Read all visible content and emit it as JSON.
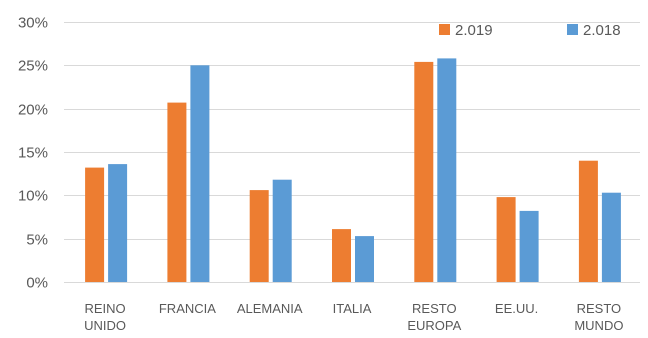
{
  "chart_data": {
    "type": "bar",
    "categories": [
      "REINO UNIDO",
      "FRANCIA",
      "ALEMANIA",
      "ITALIA",
      "RESTO EUROPA",
      "EE.UU.",
      "RESTO MUNDO"
    ],
    "category_lines": [
      [
        "REINO",
        "UNIDO"
      ],
      [
        "FRANCIA"
      ],
      [
        "ALEMANIA"
      ],
      [
        "ITALIA"
      ],
      [
        "RESTO",
        "EUROPA"
      ],
      [
        "EE.UU."
      ],
      [
        "RESTO",
        "MUNDO"
      ]
    ],
    "series": [
      {
        "name": "2.019",
        "color": "#ED7D31",
        "values": [
          13.2,
          20.7,
          10.6,
          6.1,
          25.4,
          9.8,
          14.0
        ]
      },
      {
        "name": "2.018",
        "color": "#5B9BD5",
        "values": [
          13.6,
          25.0,
          11.8,
          5.3,
          25.8,
          8.2,
          10.3
        ]
      }
    ],
    "yticks": [
      "0%",
      "5%",
      "10%",
      "15%",
      "20%",
      "25%",
      "30%"
    ],
    "ylim": [
      0,
      30
    ],
    "grid": true,
    "legend_position": "top-right",
    "title": "",
    "xlabel": "",
    "ylabel": ""
  }
}
